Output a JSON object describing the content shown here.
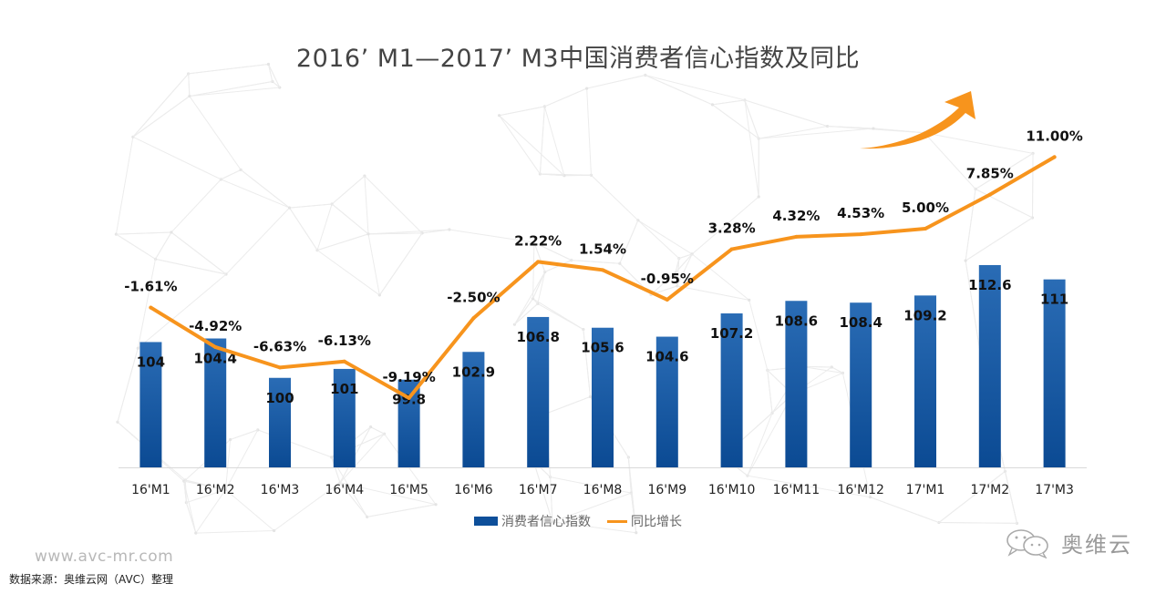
{
  "title": "2016’ M1—2017’ M3中国消费者信心指数及同比",
  "legend": {
    "bar_label": "消费者信心指数",
    "line_label": "同比增长"
  },
  "footer": {
    "website": "www.avc-mr.com",
    "source": "数据来源：奥维云网（AVC）整理",
    "brand": "奥维云"
  },
  "icons": {
    "trend_arrow": "arrow-up-right-icon",
    "brand_logo": "wechat-icon"
  },
  "colors": {
    "bar": "#0d4f9a",
    "bar_light": "#2a6cb5",
    "line": "#f7941d",
    "arrow": "#f7941d"
  },
  "chart_data": {
    "type": "bar",
    "title": "2016’ M1—2017’ M3中国消费者信心指数及同比",
    "xlabel": "",
    "ylabel": "",
    "categories": [
      "16'M1",
      "16'M2",
      "16'M3",
      "16'M4",
      "16'M5",
      "16'M6",
      "16'M7",
      "16'M8",
      "16'M9",
      "16'M10",
      "16'M11",
      "16'M12",
      "17'M1",
      "17'M2",
      "17'M3"
    ],
    "series": [
      {
        "name": "消费者信心指数",
        "type": "bar",
        "axis": "left",
        "values": [
          104,
          104.4,
          100,
          101,
          99.8,
          102.9,
          106.8,
          105.6,
          104.6,
          107.2,
          108.6,
          108.4,
          109.2,
          112.6,
          111
        ],
        "labels": [
          "104",
          "104.4",
          "100",
          "101",
          "99.8",
          "102.9",
          "106.8",
          "105.6",
          "104.6",
          "107.2",
          "108.6",
          "108.4",
          "109.2",
          "112.6",
          "111"
        ]
      },
      {
        "name": "同比增长",
        "type": "line",
        "axis": "right",
        "values": [
          -1.61,
          -4.92,
          -6.63,
          -6.13,
          -9.19,
          -2.5,
          2.22,
          1.54,
          -0.95,
          3.28,
          4.32,
          4.53,
          5.0,
          7.85,
          11.0
        ],
        "labels": [
          "-1.61%",
          "-4.92%",
          "-6.63%",
          "-6.13%",
          "-9.19%",
          "-2.50%",
          "2.22%",
          "1.54%",
          "-0.95%",
          "3.28%",
          "4.32%",
          "4.53%",
          "5.00%",
          "7.85%",
          "11.00%"
        ]
      }
    ],
    "ylim": [
      90,
      130
    ],
    "y2lim": [
      -15,
      15
    ],
    "grid": false,
    "legend_position": "bottom"
  }
}
